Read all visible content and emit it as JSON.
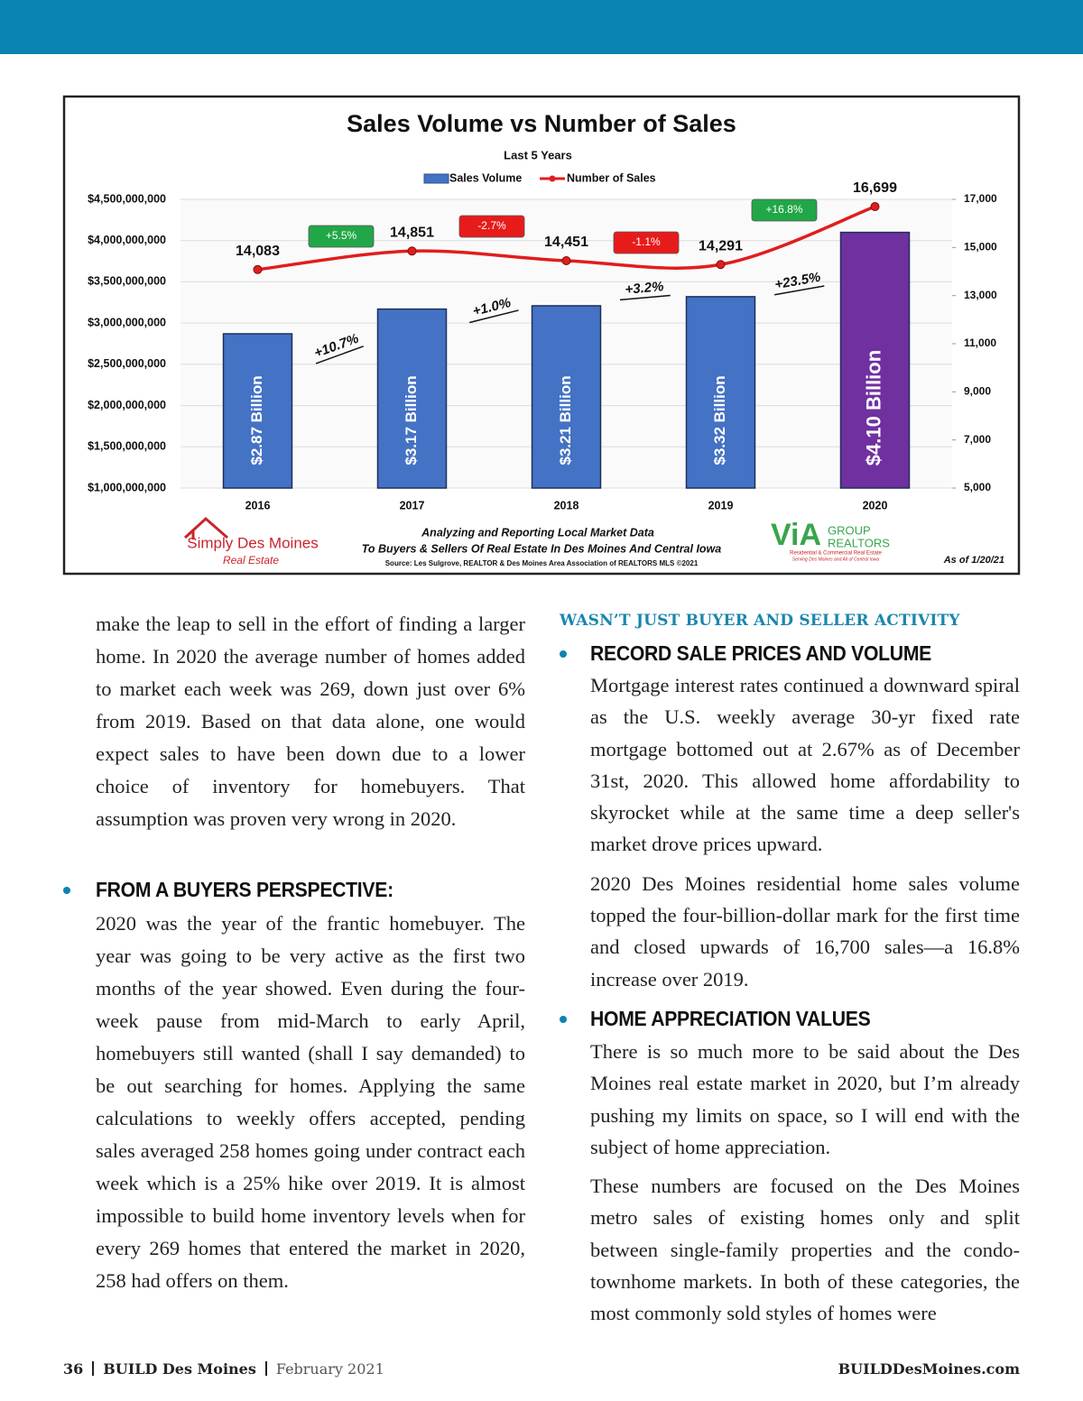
{
  "chart_data": {
    "type": "bar",
    "title": "Sales Volume vs Number of Sales",
    "subtitle": "Last 5 Years",
    "categories": [
      "2016",
      "2017",
      "2018",
      "2019",
      "2020"
    ],
    "series": [
      {
        "name": "Sales Volume",
        "type": "bar",
        "color": "#4472c4",
        "colors": [
          "#4472c4",
          "#4472c4",
          "#4472c4",
          "#4472c4",
          "#7030a0"
        ],
        "values": [
          2870000000,
          3170000000,
          3210000000,
          3320000000,
          4100000000
        ],
        "value_labels": [
          "$2.87 Billion",
          "$3.17 Billion",
          "$3.21 Billion",
          "$3.32 Billion",
          "$4.10 Billion"
        ]
      },
      {
        "name": "Number of Sales",
        "type": "line",
        "axis": "y2",
        "color": "#e11d1d",
        "values": [
          14083,
          14851,
          14451,
          14291,
          16699
        ],
        "value_labels": [
          "14,083",
          "14,851",
          "14,451",
          "14,291",
          "16,699"
        ]
      }
    ],
    "ylim": [
      1000000000,
      4500000000
    ],
    "yticks": [
      {
        "value": 1000000000,
        "label": "$1,000,000,000"
      },
      {
        "value": 1500000000,
        "label": "$1,500,000,000"
      },
      {
        "value": 2000000000,
        "label": "$2,000,000,000"
      },
      {
        "value": 2500000000,
        "label": "$2,500,000,000"
      },
      {
        "value": 3000000000,
        "label": "$3,000,000,000"
      },
      {
        "value": 3500000000,
        "label": "$3,500,000,000"
      },
      {
        "value": 4000000000,
        "label": "$4,000,000,000"
      },
      {
        "value": 4500000000,
        "label": "$4,500,000,000"
      }
    ],
    "y2lim": [
      5000,
      17000
    ],
    "y2ticks": [
      {
        "value": 5000,
        "label": "5,000"
      },
      {
        "value": 7000,
        "label": "7,000"
      },
      {
        "value": 9000,
        "label": "9,000"
      },
      {
        "value": 11000,
        "label": "11,000"
      },
      {
        "value": 13000,
        "label": "13,000"
      },
      {
        "value": 15000,
        "label": "15,000"
      },
      {
        "value": 17000,
        "label": "17,000"
      }
    ],
    "grid": true,
    "legend": "top",
    "annotations": [
      {
        "text": "+5.5%",
        "color": "#21a747"
      },
      {
        "text": "-2.7%",
        "color": "#e81b1b"
      },
      {
        "text": "-1.1%",
        "color": "#e81b1b"
      },
      {
        "text": "+16.8%",
        "color": "#21a747"
      },
      {
        "text": "+10.7%"
      },
      {
        "text": "+1.0%"
      },
      {
        "text": "+3.2%"
      },
      {
        "text": "+23.5%"
      }
    ]
  },
  "chart_footer": {
    "tagline": "Analyzing and Reporting Local Market Data",
    "audience": "To Buyers & Sellers Of Real Estate In Des Moines And Central Iowa",
    "source": "Source: Les Sulgrove, REALTOR & Des Moines Area Association of REALTORS MLS ©2021",
    "as_of": "As of 1/20/21",
    "logo_left": {
      "name": "Simply Des Moines",
      "sub": "Real Estate"
    },
    "logo_right": {
      "mark": "ViA",
      "group": "GROUP",
      "realtors": "REALTORS",
      "line1": "Residential & Commercial Real Estate",
      "line2": "Serving Des Moines and All of Central Iowa"
    }
  },
  "article": {
    "left": {
      "p1": "make the leap to sell in the effort of finding a larger home. In 2020 the average number of homes added to market each week was 269, down just over 6% from 2019. Based on that data alone, one would expect sales to have been down due to a lower choice of inventory for homebuyers. That assumption was proven very wrong in 2020.",
      "heading": "FROM A BUYERS PERSPECTIVE:",
      "p2": "2020 was the year of the frantic homebuyer. The year was going to be very active as the first two months of the year showed. Even during the four-week pause from mid-March to early April, homebuyers still wanted (shall I say demanded) to be out searching for homes. Applying the same calculations to weekly offers accepted, pending sales averaged 258 homes going under contract each week which is a 25% hike over 2019. It is almost impossible to build home inventory levels when for every 269 homes that entered the market in 2020, 258 had offers on them."
    },
    "right": {
      "kicker": "WASN’T JUST BUYER AND SELLER ACTIVITY",
      "heading1": "RECORD SALE PRICES AND VOLUME",
      "p1": "Mortgage interest rates continued a downward spiral as the U.S. weekly average 30-yr fixed rate mortgage bottomed out at 2.67% as of December 31st, 2020. This allowed home affordability to skyrocket while at the same time a deep seller's market drove prices upward.",
      "p2": "2020 Des Moines residential home sales volume topped the four-billion-dollar mark for the first time and closed upwards of 16,700 sales—a 16.8% increase over 2019.",
      "heading2": "HOME APPRECIATION VALUES",
      "p3": "There is so much more to be said about the Des Moines real estate market in 2020, but I’m already pushing my limits on space, so I will end with the subject of home appreciation.",
      "p4": "These numbers are focused on the Des Moines metro sales of existing homes only and split between single-family properties and the condo-townhome markets. In both of these categories, the most commonly sold styles of homes were"
    }
  },
  "footer": {
    "page": "36",
    "publication": "BUILD Des Moines",
    "issue": "February 2021",
    "site": "BUILDDesMoines.com"
  }
}
